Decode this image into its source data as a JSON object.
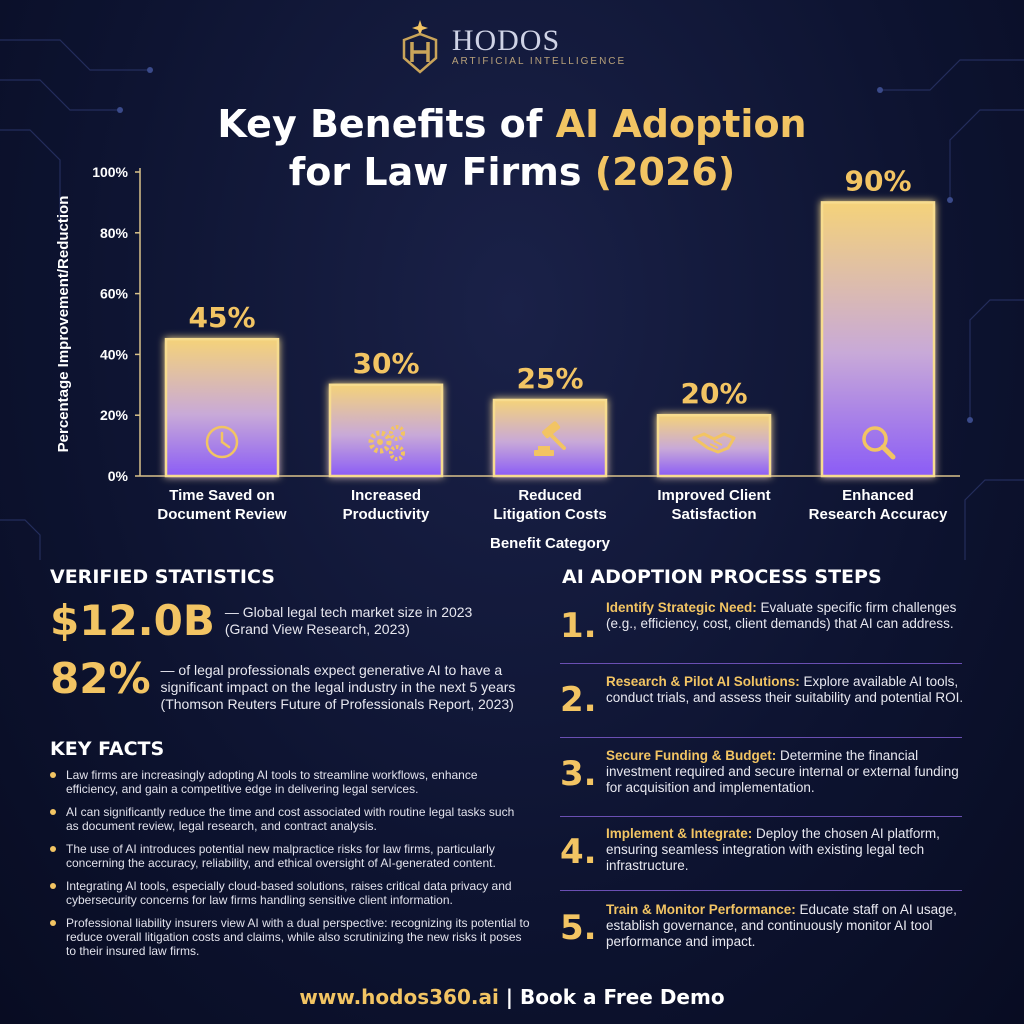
{
  "logo": {
    "name": "HODOS",
    "subtitle": "ARTIFICIAL INTELLIGENCE"
  },
  "title": {
    "line1_prefix": "Key Benefits of ",
    "line1_highlight": "AI Adoption",
    "line2_prefix": "for Law Firms ",
    "line2_highlight": "(2026)"
  },
  "colors": {
    "gold": "#f2c463",
    "purple": "#8b5cf6",
    "background": "#0d1330"
  },
  "chart_data": {
    "type": "bar",
    "categories": [
      [
        "Time Saved on",
        "Document Review"
      ],
      [
        "Increased",
        "Productivity"
      ],
      [
        "Reduced",
        "Litigation Costs"
      ],
      [
        "Improved Client",
        "Satisfaction"
      ],
      [
        "Enhanced",
        "Research Accuracy"
      ]
    ],
    "values": [
      45,
      30,
      25,
      20,
      90
    ],
    "value_labels": [
      "45%",
      "30%",
      "25%",
      "20%",
      "90%"
    ],
    "icons": [
      "clock-icon",
      "gears-icon",
      "gavel-icon",
      "handshake-icon",
      "magnifier-icon"
    ],
    "xlabel": "Benefit Category",
    "ylabel": "Percentage Improvement/Reduction",
    "ylim": [
      0,
      100
    ],
    "yticks": [
      "0%",
      "20%",
      "40%",
      "60%",
      "80%",
      "100%"
    ],
    "grid": false
  },
  "verified": {
    "heading": "VERIFIED STATISTICS",
    "stats": [
      {
        "value": "$12.0B",
        "line1": "— Global legal tech market size in 2023",
        "line2": "(Grand View Research, 2023)",
        "line3": ""
      },
      {
        "value": "82%",
        "line1": "— of legal professionals expect generative AI to have a",
        "line2": "significant impact on the legal industry in the next 5 years",
        "line3": "(Thomson Reuters Future of Professionals Report, 2023)"
      }
    ]
  },
  "key_facts": {
    "heading": "KEY FACTS",
    "items": [
      "Law firms are increasingly adopting AI tools to streamline workflows, enhance efficiency, and gain a competitive edge in delivering legal services.",
      "AI can significantly reduce the time and cost associated with routine legal tasks such as document review, legal research, and contract analysis.",
      "The use of AI introduces potential new malpractice risks for law firms, particularly concerning the accuracy, reliability, and ethical oversight of AI-generated content.",
      "Integrating AI tools, especially cloud-based solutions, raises critical data privacy and cybersecurity concerns for law firms handling sensitive client information.",
      "Professional liability insurers view AI with a dual perspective: recognizing its potential to reduce overall litigation costs and claims, while also scrutinizing the new risks it poses to their insured law firms."
    ]
  },
  "process": {
    "heading": "AI ADOPTION PROCESS STEPS",
    "steps": [
      {
        "num": "1.",
        "title": "Identify Strategic Need:",
        "text": " Evaluate specific firm challenges (e.g., efficiency, cost, client demands) that AI can address."
      },
      {
        "num": "2.",
        "title": "Research & Pilot AI Solutions:",
        "text": " Explore available AI tools, conduct trials, and assess their suitability and potential ROI."
      },
      {
        "num": "3.",
        "title": "Secure Funding & Budget:",
        "text": " Determine the financial investment required and secure internal or external funding for acquisition and implementation."
      },
      {
        "num": "4.",
        "title": "Implement & Integrate:",
        "text": " Deploy the chosen AI platform, ensuring seamless integration with existing legal tech infrastructure."
      },
      {
        "num": "5.",
        "title": "Train & Monitor Performance:",
        "text": " Educate staff on AI usage, establish governance, and continuously monitor AI tool performance and impact."
      }
    ]
  },
  "footer": {
    "url": "www.hodos360.ai",
    "separator": " | ",
    "cta": "Book a Free Demo"
  }
}
